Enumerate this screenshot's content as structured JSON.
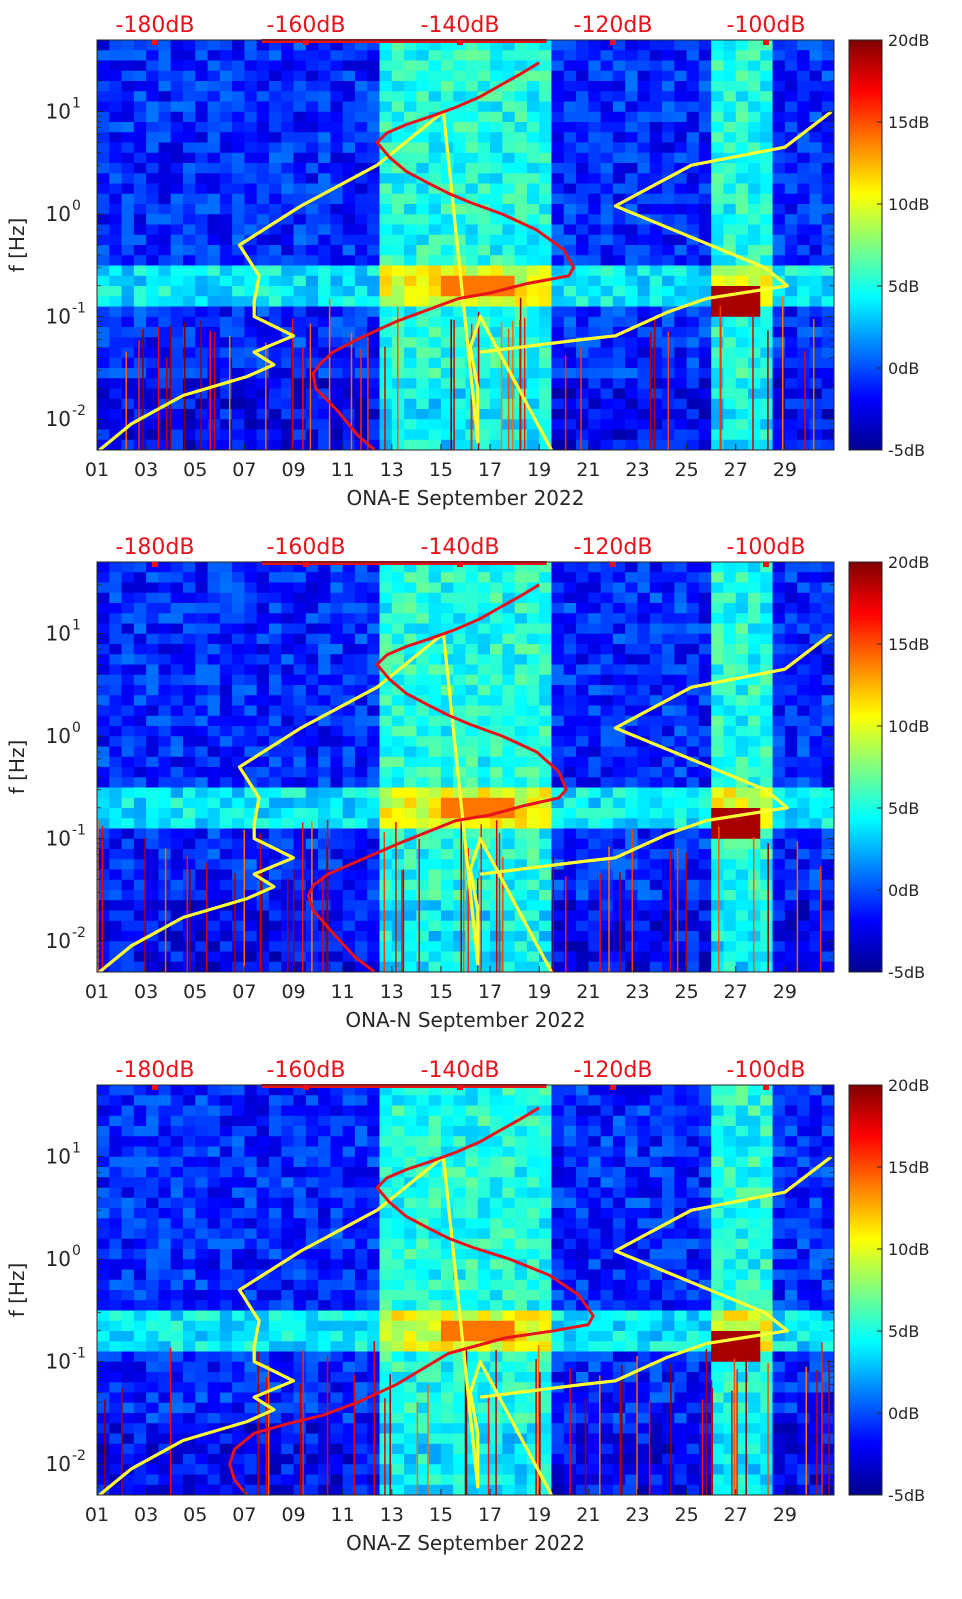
{
  "figure": {
    "ylabel": "f [Hz]",
    "x_ticks": [
      "01",
      "03",
      "05",
      "07",
      "09",
      "11",
      "13",
      "15",
      "17",
      "19",
      "21",
      "23",
      "25",
      "27",
      "29"
    ],
    "y_ticks": [
      {
        "value": 10,
        "base": "10",
        "exp": "1"
      },
      {
        "value": 1,
        "base": "10",
        "exp": "0"
      },
      {
        "value": 0.1,
        "base": "10",
        "exp": "-1"
      },
      {
        "value": 0.01,
        "base": "10",
        "exp": "-2"
      }
    ],
    "top_ticks": [
      "-180dB",
      "-160dB",
      "-140dB",
      "-120dB",
      "-100dB"
    ],
    "colorbar_ticks": [
      "20dB",
      "15dB",
      "10dB",
      "5dB",
      "0dB",
      "-5dB"
    ],
    "colors": {
      "ref_curve": "#ffff33",
      "psd_curve": "#e8121b",
      "top_tick_text": "#e8121b",
      "colormap": "jet"
    }
  },
  "chart_data": [
    {
      "type": "heatmap",
      "xlabel": "ONA-E September 2022",
      "ylabel": "f [Hz]",
      "x_range_days": [
        1,
        31
      ],
      "y_range_hz": [
        0.005,
        50
      ],
      "y_scale": "log",
      "color_range_db": [
        -5,
        20
      ],
      "top_axis": [
        "-180dB",
        "-160dB",
        "-140dB",
        "-120dB",
        "-100dB"
      ],
      "series": [
        {
          "name": "",
          "color": "#ffff33",
          "x_day": [
            1.1,
            2.4,
            4.5,
            7.1,
            8.2,
            7.4,
            9.0,
            7.8,
            7.4,
            7.4,
            7.6,
            6.8,
            9.3,
            12.4,
            15.1,
            16.5,
            16.5,
            16.2,
            16.6,
            19.5
          ],
          "y_hz": [
            0.005,
            0.009,
            0.017,
            0.026,
            0.034,
            0.045,
            0.065,
            0.09,
            0.1,
            0.14,
            0.25,
            0.5,
            1.2,
            3.0,
            10.0,
            0.006,
            0.02,
            0.05,
            0.1,
            0.005
          ]
        },
        {
          "name": "",
          "color": "#ffff33",
          "x_day": [
            16.6,
            20.8,
            22.1,
            24.2,
            25.8,
            29.1,
            28.2,
            22.1,
            25.2,
            29.0,
            30.9
          ],
          "y_hz": [
            0.045,
            0.06,
            0.065,
            0.11,
            0.15,
            0.2,
            0.3,
            1.2,
            3.0,
            4.5,
            10.0
          ]
        },
        {
          "name": "",
          "color": "#e8121b",
          "x_day": [
            12.3,
            11.6,
            10.8,
            9.9,
            9.8,
            10.1,
            10.6,
            11.6,
            13.2,
            15.7,
            17.0,
            18.5,
            20.2,
            20.4,
            20.0,
            18.9,
            17.5,
            16.2,
            15.3,
            14.5,
            13.6,
            12.9,
            12.4,
            12.8,
            13.6,
            14.6,
            15.6,
            16.6,
            17.4,
            18.2,
            19.0
          ],
          "y_hz": [
            0.005,
            0.007,
            0.012,
            0.02,
            0.028,
            0.035,
            0.045,
            0.06,
            0.09,
            0.15,
            0.17,
            0.21,
            0.25,
            0.3,
            0.45,
            0.7,
            1.0,
            1.3,
            1.6,
            2.0,
            2.6,
            3.6,
            5.0,
            6.2,
            7.5,
            9.0,
            11.0,
            14.0,
            18.0,
            23.0,
            30.0
          ]
        }
      ]
    },
    {
      "type": "heatmap",
      "xlabel": "ONA-N September 2022",
      "ylabel": "f [Hz]",
      "x_range_days": [
        1,
        31
      ],
      "y_range_hz": [
        0.005,
        50
      ],
      "y_scale": "log",
      "color_range_db": [
        -5,
        20
      ],
      "top_axis": [
        "-180dB",
        "-160dB",
        "-140dB",
        "-120dB",
        "-100dB"
      ],
      "series": [
        {
          "name": "",
          "color": "#ffff33",
          "x_day": [
            1.1,
            2.4,
            4.5,
            7.1,
            8.2,
            7.4,
            9.0,
            7.8,
            7.4,
            7.4,
            7.6,
            6.8,
            9.3,
            12.4,
            15.1,
            16.5,
            16.5,
            16.2,
            16.6,
            19.5
          ],
          "y_hz": [
            0.005,
            0.009,
            0.017,
            0.026,
            0.034,
            0.045,
            0.065,
            0.09,
            0.1,
            0.14,
            0.25,
            0.5,
            1.2,
            3.0,
            10.0,
            0.006,
            0.02,
            0.05,
            0.1,
            0.005
          ]
        },
        {
          "name": "",
          "color": "#ffff33",
          "x_day": [
            16.6,
            20.8,
            22.1,
            24.2,
            25.8,
            29.1,
            28.2,
            22.1,
            25.2,
            29.0,
            30.9
          ],
          "y_hz": [
            0.045,
            0.06,
            0.065,
            0.11,
            0.15,
            0.2,
            0.3,
            1.2,
            3.0,
            4.5,
            10.0
          ]
        },
        {
          "name": "",
          "color": "#e8121b",
          "x_day": [
            12.3,
            11.5,
            10.6,
            9.8,
            9.6,
            9.8,
            10.4,
            11.6,
            13.3,
            15.6,
            17.0,
            18.4,
            19.8,
            20.1,
            19.8,
            18.9,
            17.5,
            16.2,
            15.3,
            14.5,
            13.6,
            12.9,
            12.4,
            12.8,
            13.6,
            14.6,
            15.6,
            16.6,
            17.4,
            18.2,
            19.0
          ],
          "y_hz": [
            0.005,
            0.007,
            0.012,
            0.02,
            0.028,
            0.035,
            0.045,
            0.06,
            0.09,
            0.15,
            0.17,
            0.21,
            0.25,
            0.3,
            0.45,
            0.7,
            1.0,
            1.3,
            1.6,
            2.0,
            2.6,
            3.6,
            5.0,
            6.2,
            7.5,
            9.0,
            11.0,
            14.0,
            18.0,
            23.0,
            30.0
          ]
        }
      ]
    },
    {
      "type": "heatmap",
      "xlabel": "ONA-Z September 2022",
      "ylabel": "f [Hz]",
      "x_range_days": [
        1,
        31
      ],
      "y_range_hz": [
        0.005,
        50
      ],
      "y_scale": "log",
      "color_range_db": [
        -5,
        20
      ],
      "top_axis": [
        "-180dB",
        "-160dB",
        "-140dB",
        "-120dB",
        "-100dB"
      ],
      "series": [
        {
          "name": "",
          "color": "#ffff33",
          "x_day": [
            1.1,
            2.4,
            4.5,
            7.1,
            8.2,
            7.4,
            9.0,
            7.8,
            7.4,
            7.4,
            7.6,
            6.8,
            9.3,
            12.4,
            15.1,
            16.5,
            16.5,
            16.2,
            16.6,
            19.5
          ],
          "y_hz": [
            0.005,
            0.009,
            0.017,
            0.026,
            0.034,
            0.045,
            0.065,
            0.09,
            0.1,
            0.14,
            0.25,
            0.5,
            1.2,
            3.0,
            10.0,
            0.006,
            0.02,
            0.05,
            0.1,
            0.005
          ]
        },
        {
          "name": "",
          "color": "#ffff33",
          "x_day": [
            16.6,
            20.8,
            22.1,
            24.2,
            25.8,
            29.1,
            28.2,
            22.1,
            25.2,
            29.0,
            30.9
          ],
          "y_hz": [
            0.045,
            0.06,
            0.065,
            0.11,
            0.15,
            0.2,
            0.3,
            1.2,
            3.0,
            4.5,
            10.0
          ]
        },
        {
          "name": "",
          "color": "#e8121b",
          "x_day": [
            7.1,
            6.6,
            6.4,
            6.6,
            7.4,
            8.8,
            10.2,
            11.6,
            13.2,
            15.3,
            17.6,
            19.6,
            21.0,
            21.2,
            20.6,
            19.4,
            17.8,
            16.3,
            15.3,
            14.5,
            13.6,
            12.9,
            12.4,
            12.8,
            13.6,
            14.6,
            15.6,
            16.6,
            17.4,
            18.2,
            19.0
          ],
          "y_hz": [
            0.005,
            0.007,
            0.01,
            0.014,
            0.02,
            0.025,
            0.03,
            0.04,
            0.06,
            0.12,
            0.17,
            0.2,
            0.23,
            0.28,
            0.45,
            0.7,
            1.0,
            1.3,
            1.6,
            2.0,
            2.6,
            3.6,
            5.0,
            6.2,
            7.5,
            9.0,
            11.0,
            14.0,
            18.0,
            23.0,
            30.0
          ]
        }
      ]
    }
  ]
}
